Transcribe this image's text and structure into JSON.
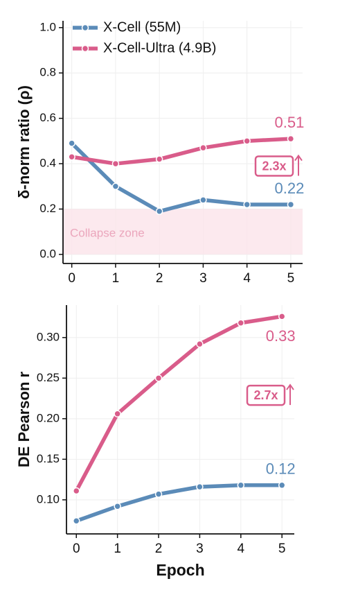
{
  "chart_data": [
    {
      "type": "line",
      "ylabel": "δ-norm ratio (ρ)",
      "x": [
        0,
        1,
        2,
        3,
        4,
        5
      ],
      "series": [
        {
          "name": "X-Cell (55M)",
          "color": "#5b8bb8",
          "values": [
            0.49,
            0.3,
            0.19,
            0.24,
            0.22,
            0.22
          ]
        },
        {
          "name": "X-Cell-Ultra (4.9B)",
          "color": "#d95c8a",
          "values": [
            0.43,
            0.4,
            0.42,
            0.47,
            0.5,
            0.51
          ]
        }
      ],
      "xlim": [
        -0.2,
        5.27
      ],
      "xticks": [
        0,
        1,
        2,
        3,
        4,
        5
      ],
      "ylim": [
        -0.04,
        1.03
      ],
      "yticks": [
        {
          "value": 0,
          "label": "0.0"
        },
        0.2,
        0.4,
        0.6,
        0.8,
        {
          "value": 1,
          "label": "1.0"
        }
      ],
      "grid": true,
      "legend": "upper left",
      "zone": {
        "range": [
          0,
          0.2
        ],
        "label": "Collapse zone"
      },
      "annotation": "2.3x"
    },
    {
      "type": "line",
      "ylabel": "DE Pearson r",
      "xlabel": "Epoch",
      "x": [
        0,
        1,
        2,
        3,
        4,
        5
      ],
      "series": [
        {
          "name": "X-Cell (55M)",
          "color": "#5b8bb8",
          "values": [
            0.074,
            0.092,
            0.107,
            0.116,
            0.118,
            0.118
          ],
          "value_labels": [
            null,
            null,
            null,
            null,
            null,
            "0.12"
          ]
        },
        {
          "name": "X-Cell-Ultra (4.9B)",
          "color": "#d95c8a",
          "values": [
            0.111,
            0.206,
            0.25,
            0.292,
            0.318,
            0.326
          ],
          "value_labels": [
            null,
            null,
            null,
            null,
            null,
            "0.33"
          ]
        }
      ],
      "xlim": [
        -0.24,
        5.3
      ],
      "xticks": [
        0,
        1,
        2,
        3,
        4,
        5
      ],
      "ylim": [
        0.058,
        0.34
      ],
      "yticks": [
        {
          "value": 0.1,
          "label": "0.10"
        },
        0.15,
        {
          "value": 0.2,
          "label": "0.20"
        },
        0.25,
        {
          "value": 0.3,
          "label": "0.30"
        }
      ],
      "grid": true,
      "annotation": "2.7x"
    }
  ]
}
